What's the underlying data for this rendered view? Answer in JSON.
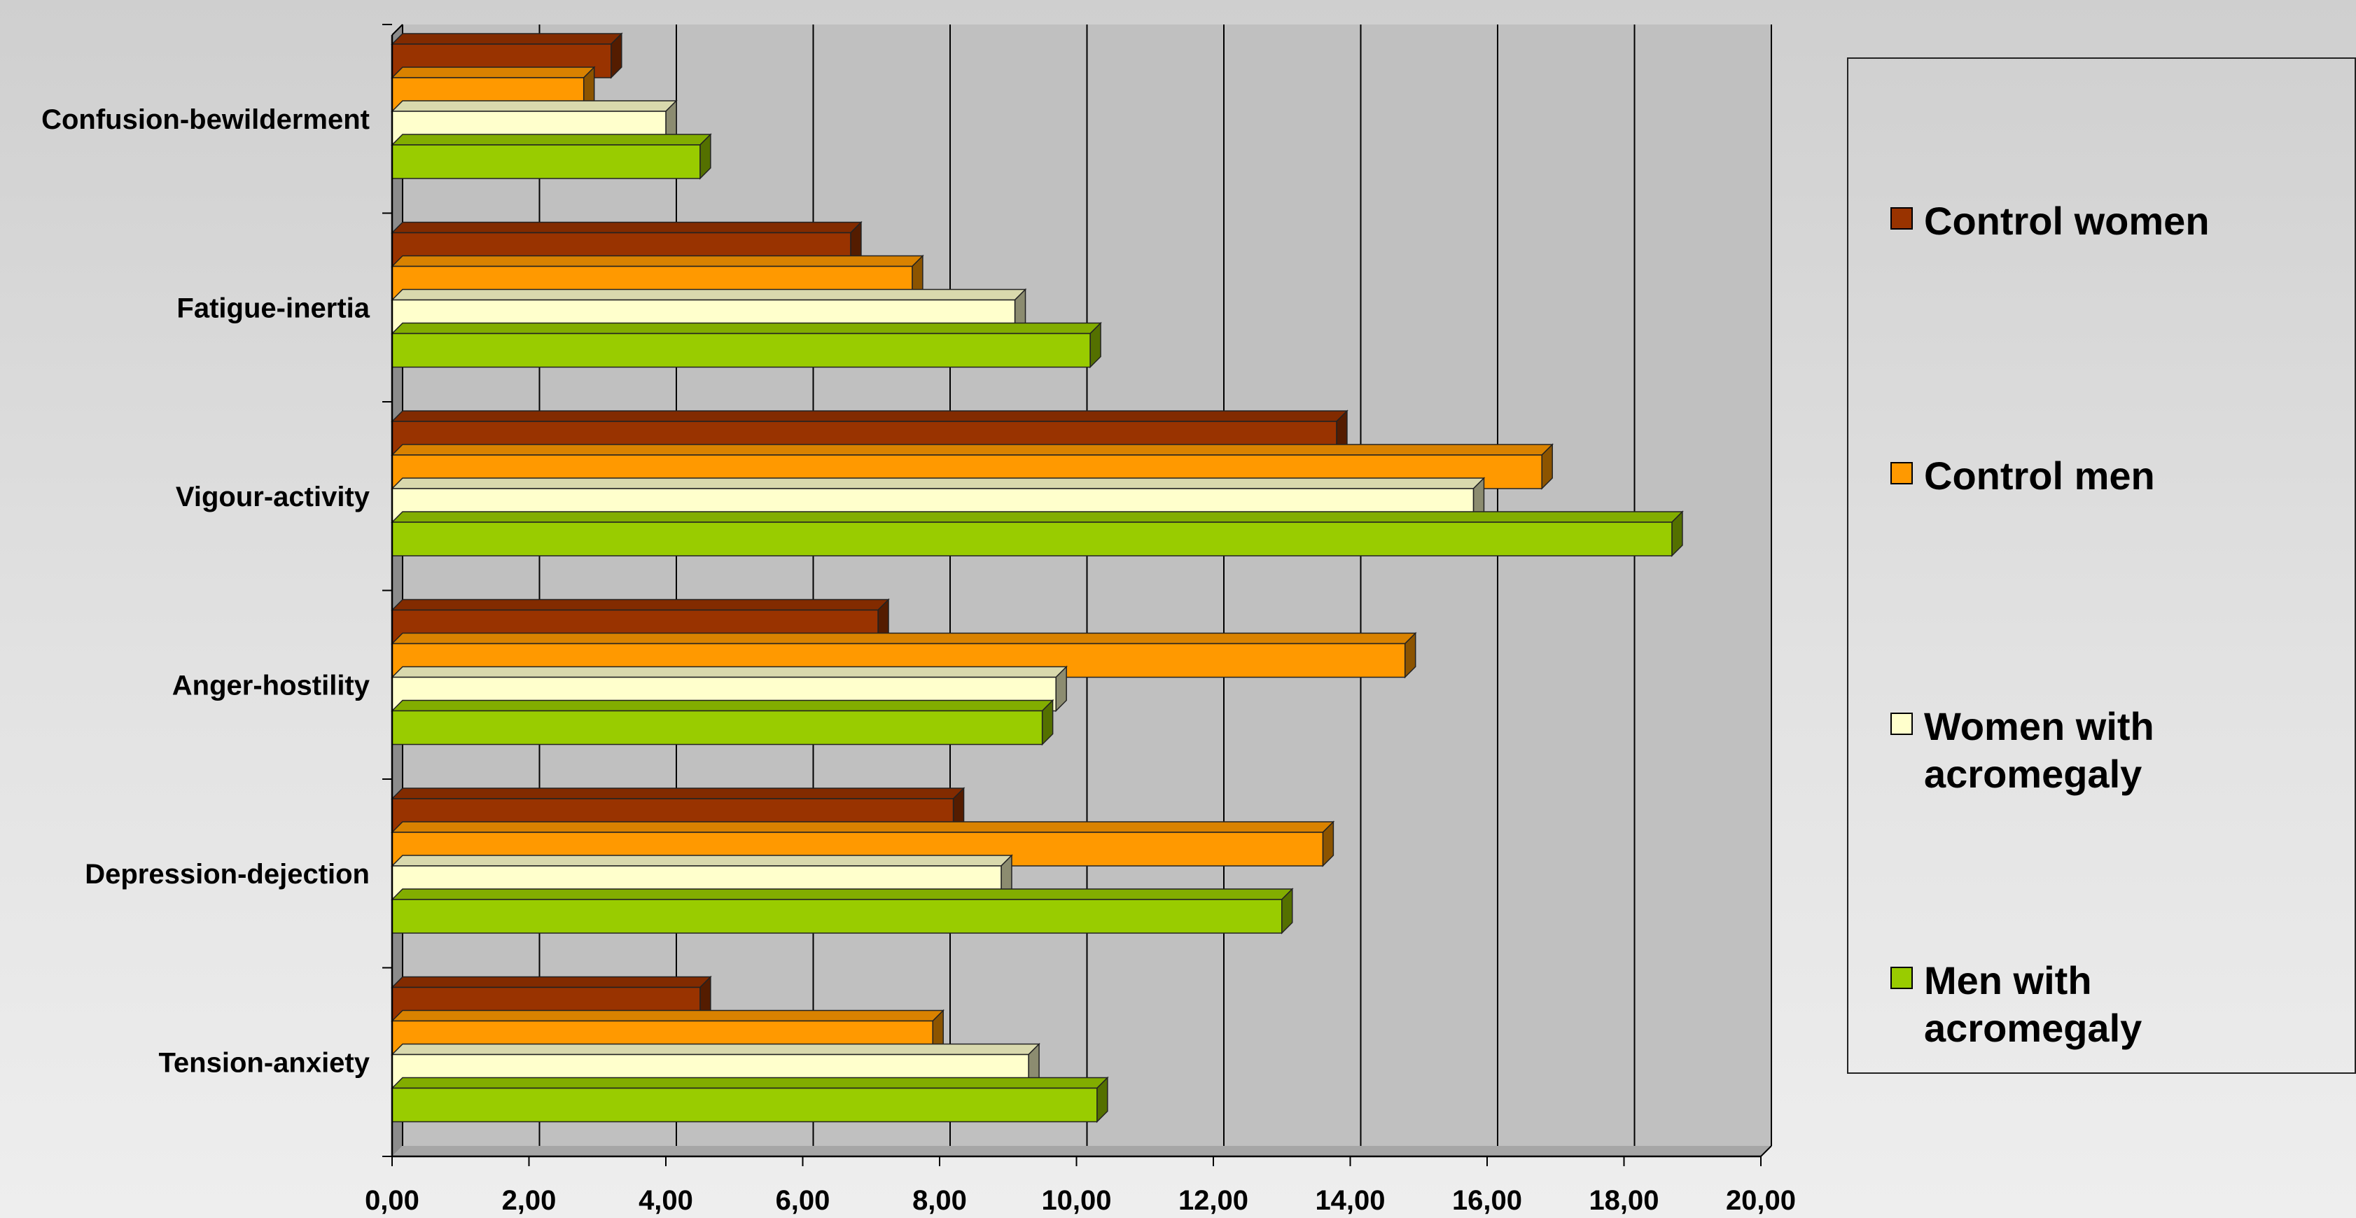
{
  "chart_data": {
    "type": "bar",
    "orientation": "horizontal",
    "categories": [
      "Tension-anxiety",
      "Depression-dejection",
      "Anger-hostility",
      "Vigour-activity",
      "Fatigue-inertia",
      "Confusion-bewilderment"
    ],
    "series": [
      {
        "name": "Control women",
        "color": "#993300",
        "values": [
          4.5,
          8.2,
          7.1,
          13.8,
          6.7,
          3.2
        ]
      },
      {
        "name": "Control men",
        "color": "#ff9900",
        "values": [
          7.9,
          13.6,
          14.8,
          16.8,
          7.6,
          2.8
        ]
      },
      {
        "name": "Women with acromegaly",
        "color": "#ffffcc",
        "values": [
          9.3,
          8.9,
          9.7,
          15.8,
          9.1,
          4.0
        ]
      },
      {
        "name": "Men with acromegaly",
        "color": "#99cc00",
        "values": [
          10.3,
          13.0,
          9.5,
          18.7,
          10.2,
          4.5
        ]
      }
    ],
    "xlim": [
      0,
      20
    ],
    "xticks": [
      "0,00",
      "2,00",
      "4,00",
      "6,00",
      "8,00",
      "10,00",
      "12,00",
      "14,00",
      "16,00",
      "18,00",
      "20,00"
    ],
    "grid": true,
    "legend_position": "right",
    "title": "",
    "xlabel": "",
    "ylabel": ""
  },
  "legend": {
    "items": [
      {
        "label": "Control women",
        "color": "#993300"
      },
      {
        "label": "Control men",
        "color": "#ff9900"
      },
      {
        "label": "Women with acromegaly",
        "color": "#ffffcc"
      },
      {
        "label": "Men with acromegaly",
        "color": "#99cc00"
      }
    ]
  }
}
